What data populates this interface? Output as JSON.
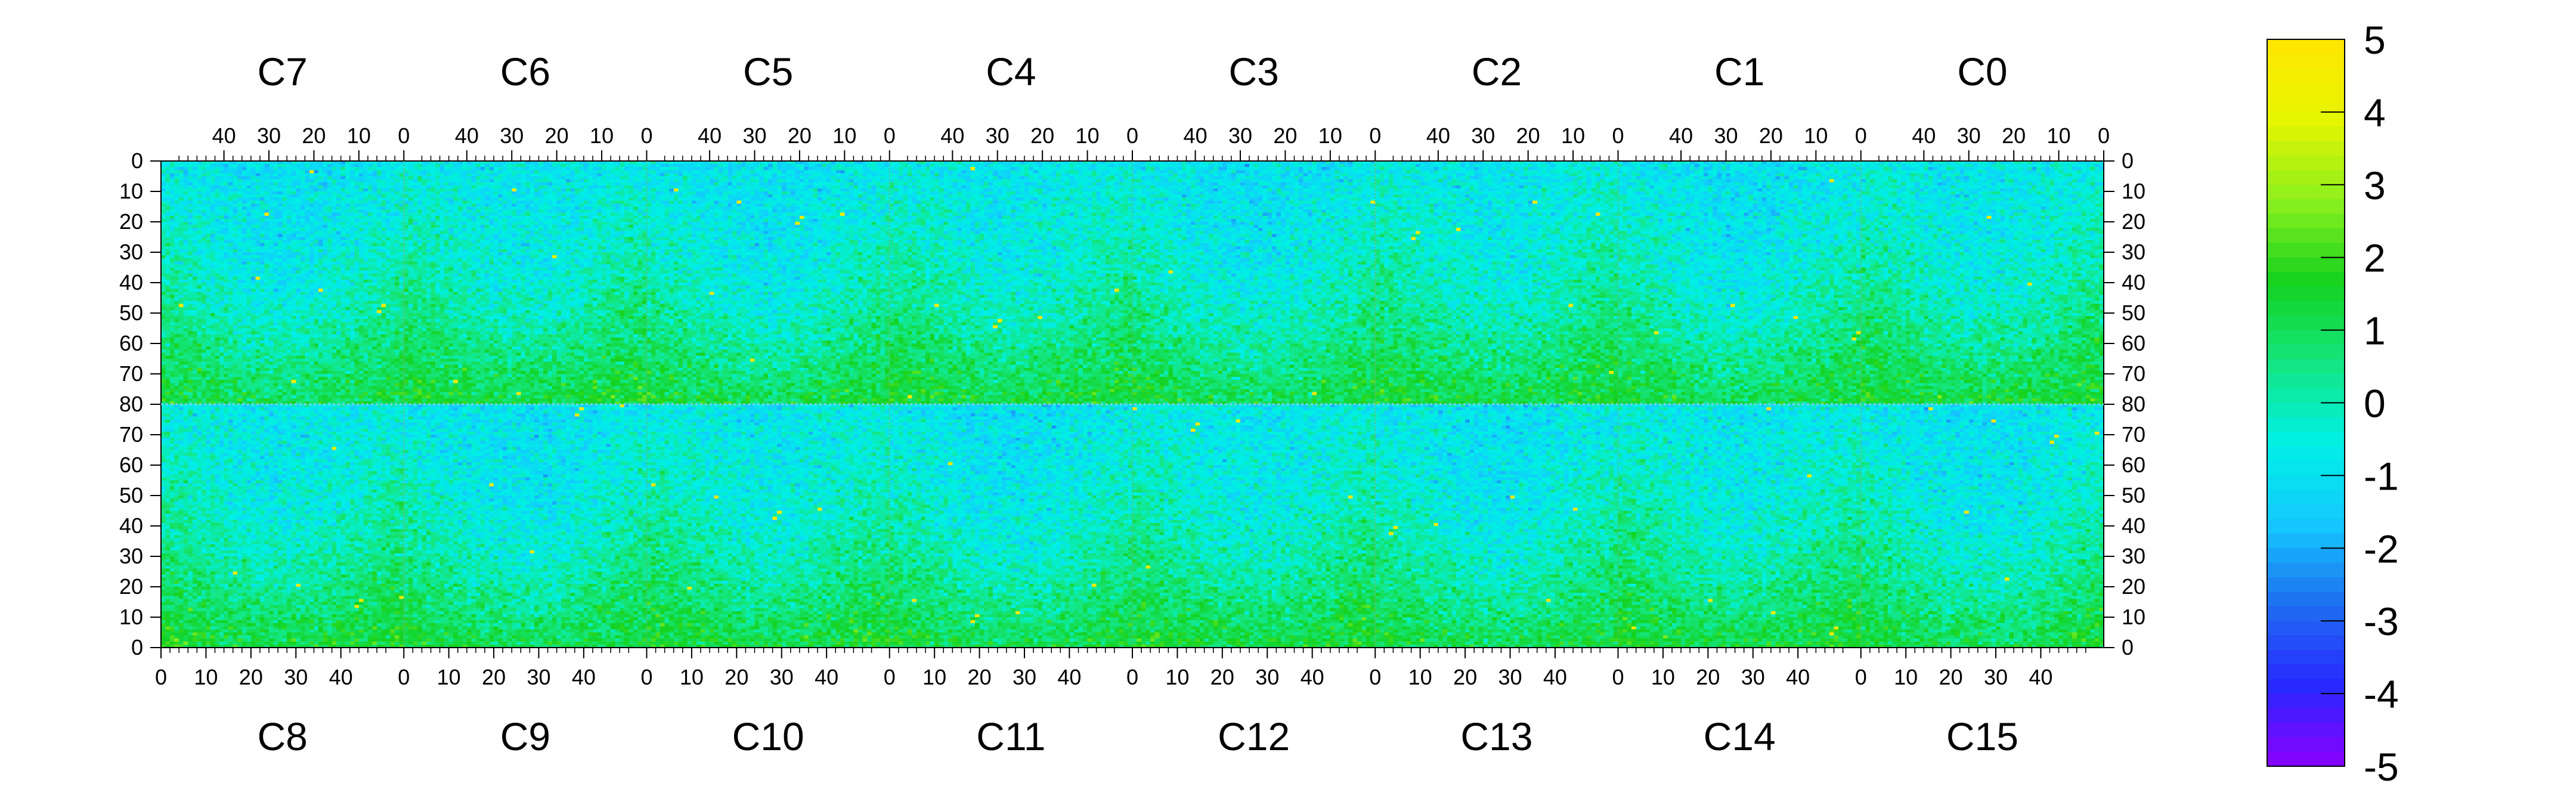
{
  "chart_data": {
    "type": "heatmap",
    "title": "",
    "xlabel": "",
    "ylabel": "",
    "grid": false,
    "legend": "right",
    "top_chips": [
      "C7",
      "C6",
      "C5",
      "C4",
      "C3",
      "C2",
      "C1",
      "C0"
    ],
    "bottom_chips": [
      "C8",
      "C9",
      "C10",
      "C11",
      "C12",
      "C13",
      "C14",
      "C15"
    ],
    "x_ticks": [
      0,
      10,
      20,
      30,
      40
    ],
    "y_ticks": [
      0,
      10,
      20,
      30,
      40,
      50,
      60,
      70,
      80
    ],
    "x_range": [
      0,
      54
    ],
    "y_range_top": [
      0,
      80
    ],
    "y_range_bottom": [
      0,
      80
    ],
    "colorbar": {
      "range": [
        -5,
        5
      ],
      "ticks": [
        5,
        4,
        3,
        2,
        1,
        0,
        -1,
        -2,
        -3,
        -4,
        -5
      ]
    },
    "colorscale": [
      "#8a00ff",
      "#2828ff",
      "#1e6ef0",
      "#14c8ff",
      "#00f0e6",
      "#14e680",
      "#14d21e",
      "#8cf01e",
      "#e6f500",
      "#ffe600"
    ]
  }
}
